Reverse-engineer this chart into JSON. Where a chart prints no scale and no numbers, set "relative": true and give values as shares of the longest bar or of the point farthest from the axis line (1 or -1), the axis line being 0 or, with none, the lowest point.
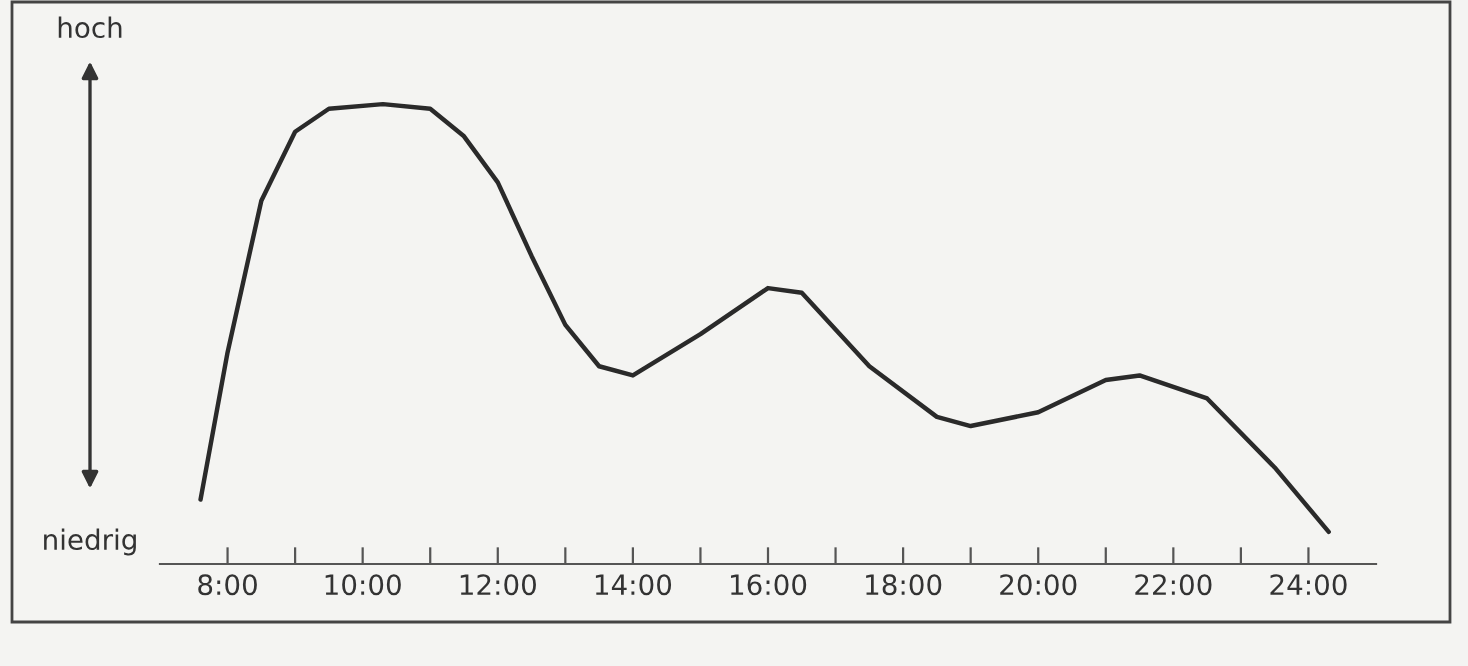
{
  "chart_data": {
    "type": "line",
    "relative": true,
    "color": "#2a2a2a",
    "annotations": [
      "hoch",
      "niedrig"
    ],
    "x": [
      7.6,
      8.0,
      8.5,
      9.0,
      9.5,
      10.3,
      11.0,
      11.5,
      12.0,
      12.5,
      13.0,
      13.5,
      14.0,
      15.0,
      16.0,
      16.5,
      17.5,
      18.5,
      19.0,
      20.0,
      21.0,
      21.5,
      22.5,
      23.5,
      24.3
    ],
    "values": [
      0.14,
      0.46,
      0.79,
      0.94,
      0.99,
      1.0,
      0.99,
      0.93,
      0.83,
      0.67,
      0.52,
      0.43,
      0.41,
      0.5,
      0.6,
      0.59,
      0.43,
      0.32,
      0.3,
      0.33,
      0.4,
      0.41,
      0.36,
      0.21,
      0.07
    ],
    "xlim": [
      7,
      25
    ],
    "xticks": [
      {
        "value": 8,
        "label": "8:00"
      },
      {
        "value": 9,
        "label": null
      },
      {
        "value": 10,
        "label": "10:00"
      },
      {
        "value": 11,
        "label": null
      },
      {
        "value": 12,
        "label": "12:00"
      },
      {
        "value": 13,
        "label": null
      },
      {
        "value": 14,
        "label": "14:00"
      },
      {
        "value": 15,
        "label": null
      },
      {
        "value": 16,
        "label": "16:00"
      },
      {
        "value": 17,
        "label": null
      },
      {
        "value": 18,
        "label": "18:00"
      },
      {
        "value": 19,
        "label": null
      },
      {
        "value": 20,
        "label": "20:00"
      },
      {
        "value": 21,
        "label": null
      },
      {
        "value": 22,
        "label": "22:00"
      },
      {
        "value": 23,
        "label": null
      },
      {
        "value": 24,
        "label": "24:00"
      }
    ],
    "grid": false,
    "legend": false
  }
}
